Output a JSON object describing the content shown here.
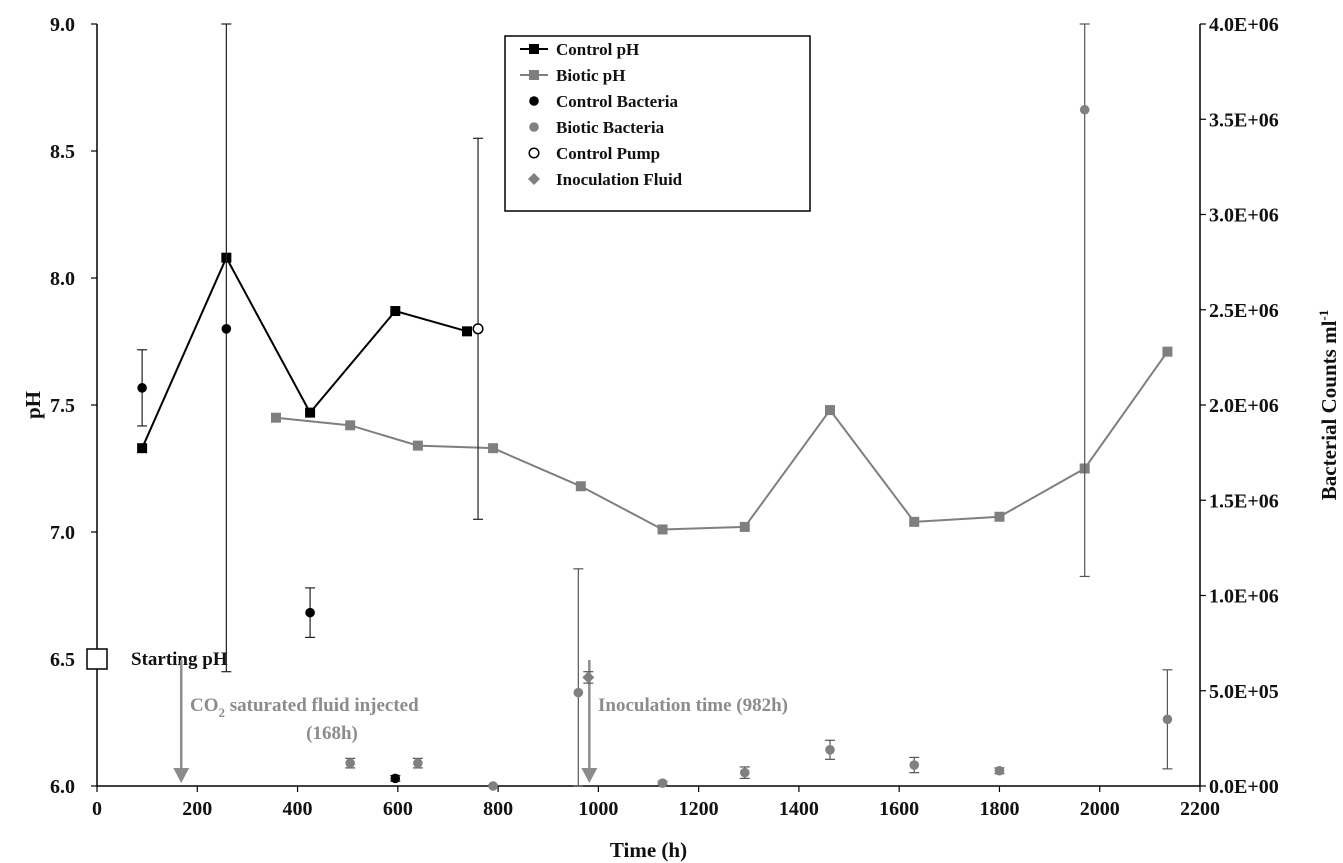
{
  "chart_data": {
    "type": "line",
    "xlabel": "Time (h)",
    "ylabel": "pH",
    "y2label": "Bacterial Counts ml",
    "y2label_sup": "-1",
    "xlim": [
      0,
      2200
    ],
    "ylim": [
      6.0,
      9.0
    ],
    "y2lim": [
      0,
      4000000
    ],
    "x_ticks": [
      "0",
      "200",
      "400",
      "600",
      "800",
      "1000",
      "1200",
      "1400",
      "1600",
      "1800",
      "2000",
      "2200"
    ],
    "y_ticks": [
      "6.0",
      "6.5",
      "7.0",
      "7.5",
      "8.0",
      "8.5",
      "9.0"
    ],
    "y2_ticks": [
      "0.0E+00",
      "5.0E+05",
      "1.0E+06",
      "1.5E+06",
      "2.0E+06",
      "2.5E+06",
      "3.0E+06",
      "3.5E+06",
      "4.0E+06"
    ],
    "grid": false,
    "legend_position": "top-center",
    "series": [
      {
        "name": "Control pH",
        "axis": "left",
        "marker": "square",
        "line": true,
        "color": "#000000",
        "x": [
          90,
          258,
          425,
          595,
          738
        ],
        "y": [
          7.33,
          8.08,
          7.47,
          7.87,
          7.79
        ]
      },
      {
        "name": "Biotic pH",
        "axis": "left",
        "marker": "square",
        "line": true,
        "color": "#7f7f7f",
        "x": [
          357,
          505,
          640,
          790,
          965,
          1128,
          1292,
          1462,
          1630,
          1800,
          1970,
          2135
        ],
        "y": [
          7.45,
          7.42,
          7.34,
          7.33,
          7.18,
          7.01,
          7.02,
          7.48,
          7.04,
          7.06,
          7.25,
          7.71
        ]
      },
      {
        "name": "Control Bacteria",
        "axis": "right",
        "marker": "circle",
        "line": false,
        "color": "#000000",
        "x": [
          90,
          258,
          425,
          595
        ],
        "y": [
          2090000,
          2400000,
          910000,
          40000
        ],
        "err": [
          200000,
          1800000,
          130000,
          15000
        ]
      },
      {
        "name": "Biotic Bacteria",
        "axis": "right",
        "marker": "circle",
        "line": false,
        "color": "#808080",
        "x": [
          505,
          640,
          790,
          960,
          1128,
          1292,
          1462,
          1630,
          1800,
          1970,
          2135
        ],
        "y": [
          120000,
          120000,
          0,
          490000,
          15000,
          70000,
          190000,
          110000,
          80000,
          3550000,
          350000
        ],
        "err": [
          25000,
          25000,
          5000,
          650000,
          10000,
          30000,
          50000,
          40000,
          15000,
          2450000,
          260000
        ]
      },
      {
        "name": "Control Pump",
        "axis": "right",
        "marker": "circle-open",
        "line": false,
        "color": "#000000",
        "x": [
          760
        ],
        "y": [
          2400000
        ],
        "err": [
          1000000
        ]
      },
      {
        "name": "Inoculation Fluid",
        "axis": "right",
        "marker": "diamond",
        "line": false,
        "color": "#808080",
        "x": [
          980
        ],
        "y": [
          570000
        ],
        "err": [
          30000
        ]
      }
    ],
    "annotations": [
      {
        "text": "Starting pH",
        "x": 0,
        "y": 6.5,
        "marker": "square-open"
      },
      {
        "text_line1": "CO",
        "sub": "2",
        "text_line1_rest": " saturated fluid injected",
        "text_line2": "(168h)",
        "arrow_x": 168
      },
      {
        "text": "Inoculation time (982h)",
        "arrow_x": 982
      }
    ]
  }
}
